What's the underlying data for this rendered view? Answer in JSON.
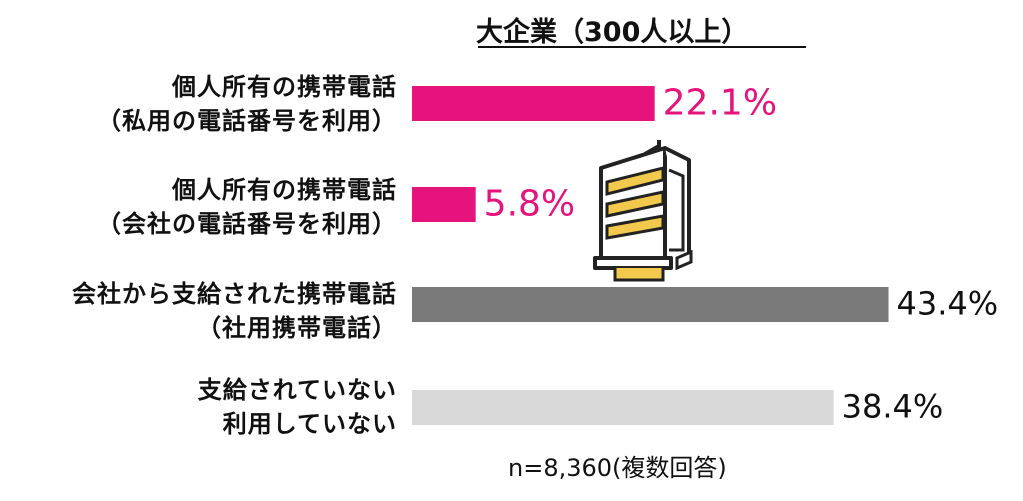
{
  "chart_data": {
    "type": "bar",
    "orientation": "horizontal",
    "title": "大企業（300人以上）",
    "note": "n=8,360(複数回答)",
    "categories": [
      {
        "line1": "個人所有の携帯電話",
        "line2": "（私用の電話番号を利用）"
      },
      {
        "line1": "個人所有の携帯電話",
        "line2": "（会社の電話番号を利用）"
      },
      {
        "line1": "会社から支給された携帯電話",
        "line2": "（社用携帯電話）"
      },
      {
        "line1": "支給されていない",
        "line2": "利用していない"
      }
    ],
    "values": [
      22.1,
      5.8,
      43.4,
      38.4
    ],
    "value_labels": [
      "22.1%",
      "5.8%",
      "43.4%",
      "38.4%"
    ],
    "unit": "%",
    "xlim": [
      0,
      50
    ],
    "bar_colors": [
      "#e6137d",
      "#e6137d",
      "#7a7a7a",
      "#d9d9d9"
    ],
    "label_colors": [
      "#e6137d",
      "#e6137d",
      "#111111",
      "#111111"
    ],
    "grid": false,
    "legend": "none"
  },
  "icon": "office-building-icon"
}
